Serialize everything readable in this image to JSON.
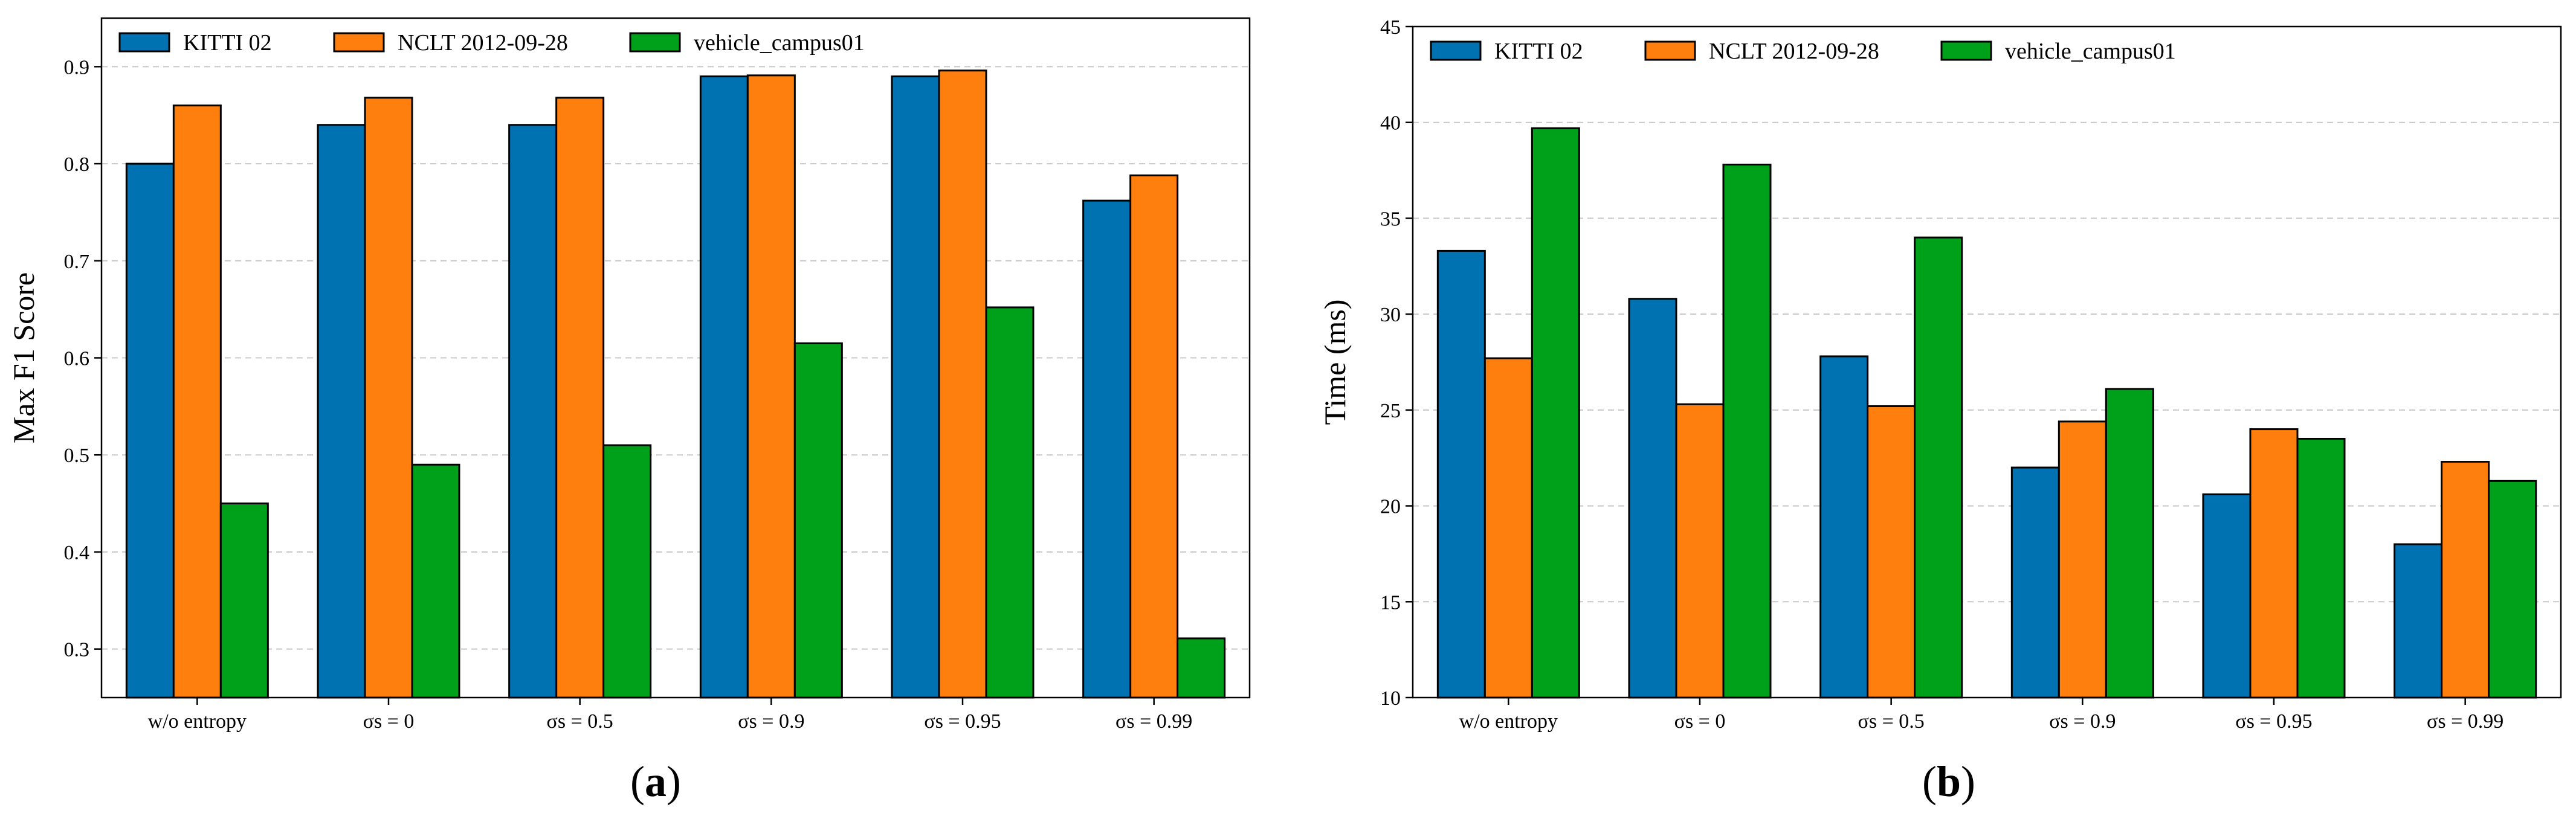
{
  "chart_data": [
    {
      "type": "bar",
      "panel_label": "a",
      "title": "",
      "xlabel": "",
      "ylabel": "Max F1 Score",
      "ylim": [
        0.25,
        0.95
      ],
      "yticks": [
        "0.3",
        "0.4",
        "0.5",
        "0.6",
        "0.7",
        "0.8",
        "0.9"
      ],
      "ytick_values": [
        0.3,
        0.4,
        0.5,
        0.6,
        0.7,
        0.8,
        0.9
      ],
      "grid": "horizontal-dashed",
      "legend": "top-left",
      "categories": [
        "w/o entropy",
        "σs = 0",
        "σs = 0.5",
        "σs = 0.9",
        "σs = 0.95",
        "σs = 0.99"
      ],
      "series": [
        {
          "name": "KITTI 02",
          "color": "#0072b2",
          "values": [
            0.8,
            0.84,
            0.84,
            0.89,
            0.89,
            0.762
          ]
        },
        {
          "name": "NCLT 2012-09-28",
          "color": "#ff7f0e",
          "values": [
            0.86,
            0.868,
            0.868,
            0.891,
            0.896,
            0.788
          ]
        },
        {
          "name": "vehicle_campus01",
          "color": "#00a11a",
          "values": [
            0.45,
            0.49,
            0.51,
            0.615,
            0.652,
            0.311
          ]
        }
      ]
    },
    {
      "type": "bar",
      "panel_label": "b",
      "title": "",
      "xlabel": "",
      "ylabel": "Time (ms)",
      "ylim": [
        10,
        45
      ],
      "yticks": [
        "10",
        "15",
        "20",
        "25",
        "30",
        "35",
        "40",
        "45"
      ],
      "ytick_values": [
        10,
        15,
        20,
        25,
        30,
        35,
        40,
        45
      ],
      "grid": "horizontal-dashed",
      "legend": "top-left",
      "categories": [
        "w/o entropy",
        "σs = 0",
        "σs = 0.5",
        "σs = 0.9",
        "σs = 0.95",
        "σs = 0.99"
      ],
      "series": [
        {
          "name": "KITTI 02",
          "color": "#0072b2",
          "values": [
            33.3,
            30.8,
            27.8,
            22.0,
            20.6,
            18.0
          ]
        },
        {
          "name": "NCLT 2012-09-28",
          "color": "#ff7f0e",
          "values": [
            27.7,
            25.3,
            25.2,
            24.4,
            24.0,
            22.3
          ]
        },
        {
          "name": "vehicle_campus01",
          "color": "#00a11a",
          "values": [
            39.7,
            37.8,
            34.0,
            26.1,
            23.5,
            21.3
          ]
        }
      ]
    }
  ]
}
